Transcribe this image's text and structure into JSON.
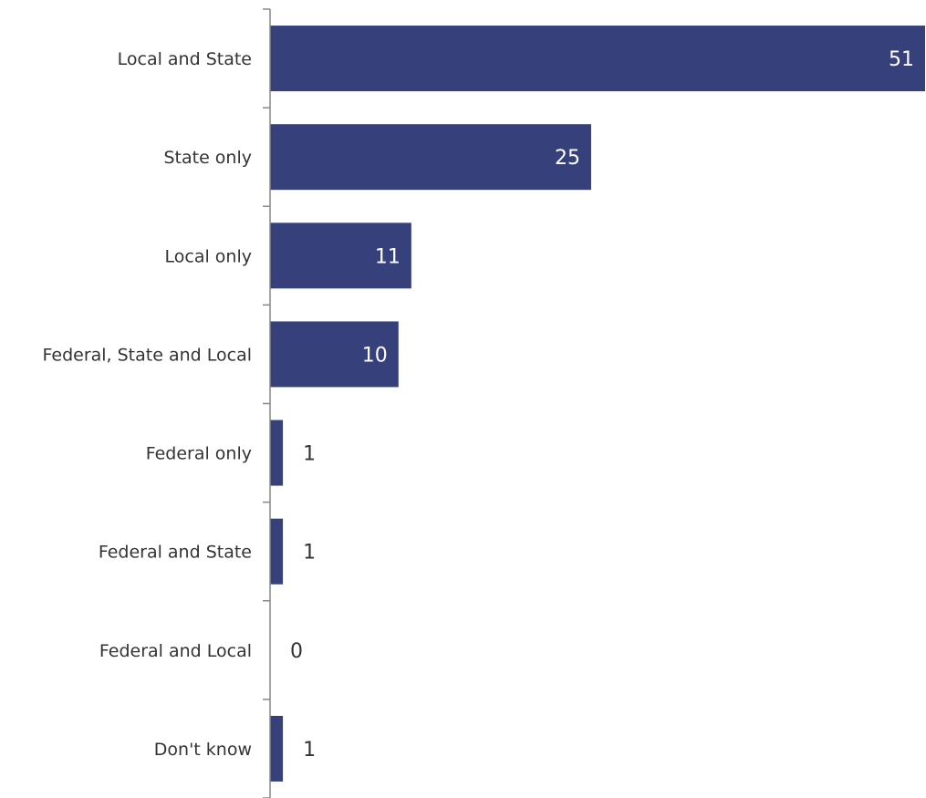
{
  "chart_data": {
    "type": "bar",
    "orientation": "horizontal",
    "categories": [
      "Local and State",
      "State only",
      "Local only",
      "Federal, State and Local",
      "Federal only",
      "Federal and State",
      "Federal and Local",
      "Don't know"
    ],
    "values": [
      51,
      25,
      11,
      10,
      1,
      1,
      0,
      1
    ],
    "value_labels": [
      "51",
      "25",
      "11",
      "10",
      "1",
      "1",
      "0",
      "1"
    ],
    "xlim": [
      0,
      51
    ],
    "grid": false,
    "legend": "none",
    "title": "",
    "xlabel": "",
    "ylabel": ""
  },
  "colors": {
    "bar": "#36407a",
    "axis": "#888888",
    "inside_label": "#ffffff",
    "outside_label": "#333333",
    "category_label": "#333333"
  }
}
